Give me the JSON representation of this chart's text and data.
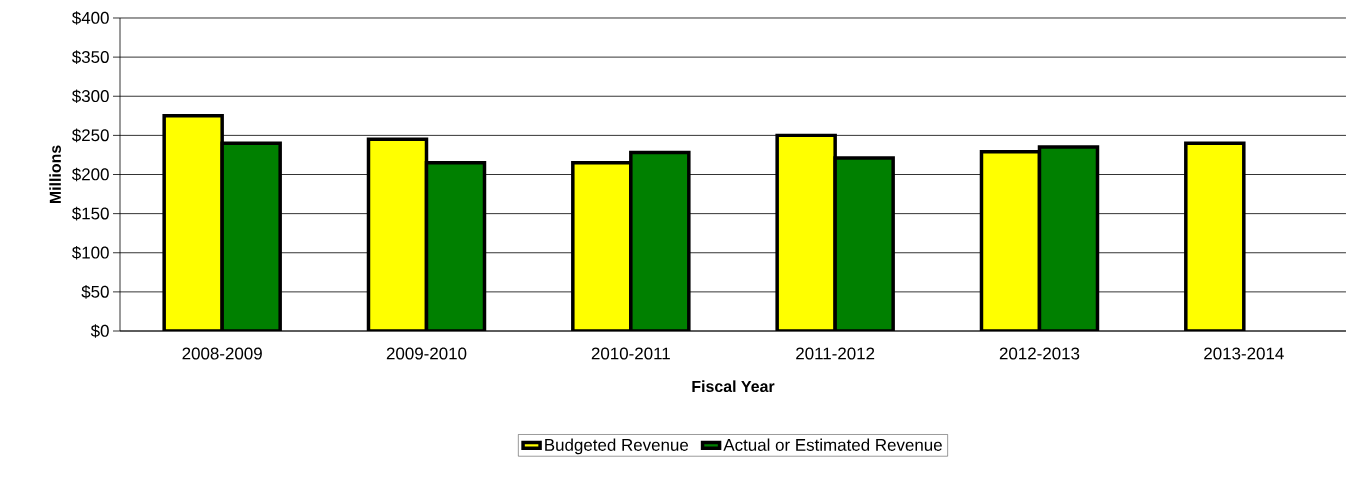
{
  "chart_data": {
    "type": "bar",
    "xlabel": "Fiscal Year",
    "ylabel": "Millions",
    "categories": [
      "2008-2009",
      "2009-2010",
      "2010-2011",
      "2011-2012",
      "2012-2013",
      "2013-2014"
    ],
    "series": [
      {
        "name": "Budgeted Revenue",
        "color": "#ffff00",
        "values": [
          275,
          245,
          215,
          250,
          229,
          240
        ]
      },
      {
        "name": "Actual or Estimated Revenue",
        "color": "#008000",
        "values": [
          240,
          215,
          228,
          221,
          235,
          null
        ]
      }
    ],
    "ylim": [
      0,
      400
    ],
    "yticks": [
      {
        "value": 0,
        "label": "$0"
      },
      {
        "value": 50,
        "label": "$50"
      },
      {
        "value": 100,
        "label": "$100"
      },
      {
        "value": 150,
        "label": "$150"
      },
      {
        "value": 200,
        "label": "$200"
      },
      {
        "value": 250,
        "label": "$250"
      },
      {
        "value": 300,
        "label": "$300"
      },
      {
        "value": 350,
        "label": "$350"
      },
      {
        "value": 400,
        "label": "$400"
      }
    ],
    "grid": "y",
    "legend": "bottom"
  }
}
